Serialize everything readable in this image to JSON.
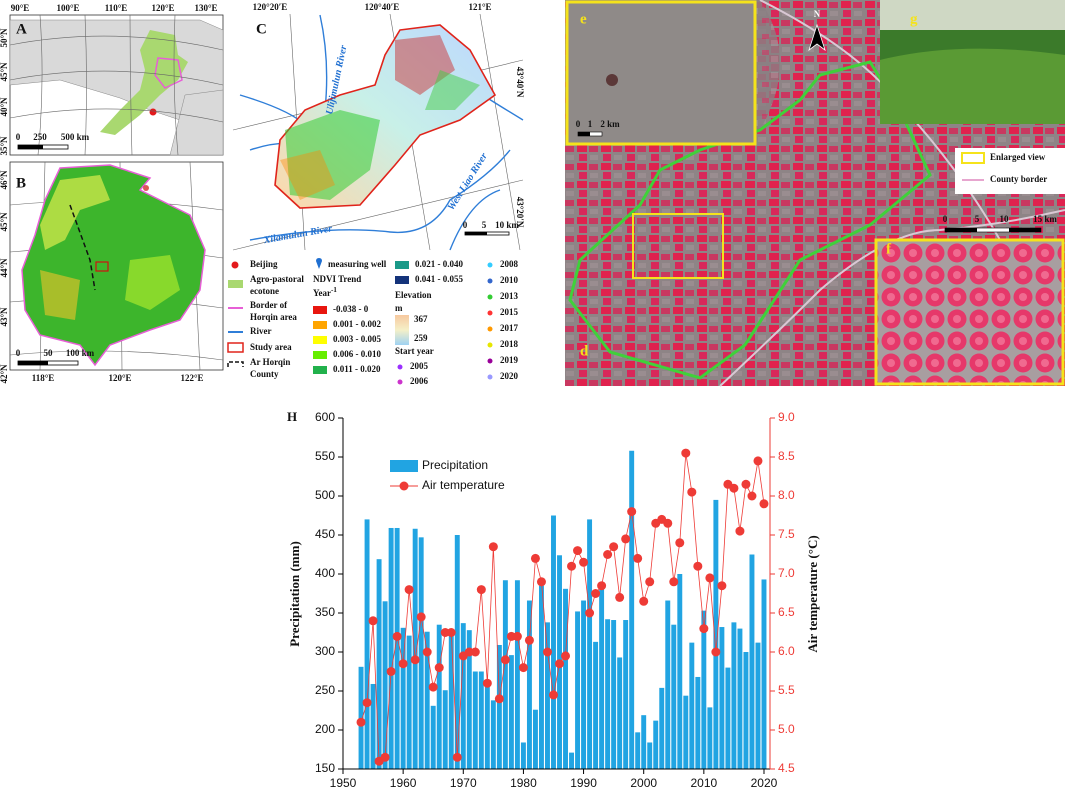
{
  "maps": {
    "A": {
      "label": "A",
      "lon": [
        "90°E",
        "100°E",
        "110°E",
        "120°E",
        "130°E"
      ],
      "lat": [
        "50°N",
        "45°N",
        "40°N",
        "35°N"
      ],
      "scale": [
        "0",
        "250",
        "500 km"
      ]
    },
    "B": {
      "label": "B",
      "lon": [
        "118°E",
        "120°E",
        "122°E"
      ],
      "lat": [
        "46°N",
        "45°N",
        "44°N",
        "43°N",
        "42°N"
      ],
      "scale": [
        "0",
        "50",
        "100 km"
      ]
    },
    "C": {
      "label": "C",
      "lon": [
        "120°20′E",
        "120°40′E",
        "121°E"
      ],
      "lat": [
        "43°40′N",
        "43°20′N"
      ],
      "rivers": [
        "Ulijimulun River",
        "Xilamulun River",
        "West Liao River"
      ],
      "scale": [
        "0",
        "5",
        "10 km"
      ]
    },
    "legend": {
      "col1": [
        [
          "Beijing"
        ],
        [
          "Agro-pastoral",
          "ecotone"
        ],
        [
          "Border of",
          "Horqin area"
        ],
        [
          "River"
        ],
        [
          "Study area"
        ],
        [
          "Ar Horqin",
          "County"
        ]
      ],
      "well": "measuring well",
      "ndvi_title": "NDVI Trend",
      "ndvi_unit": "Year",
      "ndvi_unit_exp": "-1",
      "ndvi_classes": [
        "-0.038 - 0",
        "0.001 - 0.002",
        "0.003 - 0.005",
        "0.006 - 0.010",
        "0.011 - 0.020",
        "0.021 - 0.040",
        "0.041 - 0.055"
      ],
      "elevation_title": "Elevation",
      "elevation_unit": "m",
      "elevation_range": [
        "367",
        "259"
      ],
      "start_year_title": "Start year",
      "start_years": [
        "2005",
        "2006",
        "2008",
        "2010",
        "2013",
        "2015",
        "2017",
        "2018",
        "2019",
        "2020"
      ]
    },
    "imagery": {
      "panels": [
        "e",
        "g",
        "f",
        "d"
      ],
      "north": "N",
      "scale_e": [
        "0",
        "1",
        "2 km"
      ],
      "scale_main": [
        "0",
        "5",
        "10",
        "15 km"
      ],
      "key": [
        "Enlarged view",
        "County border"
      ]
    }
  },
  "chart_data": {
    "type": "bar",
    "panel": "H",
    "y_label": "Precipitation (mm)",
    "y2_label": "Air temperature (°C)",
    "x": [
      1953,
      1954,
      1955,
      1956,
      1957,
      1958,
      1959,
      1960,
      1961,
      1962,
      1963,
      1964,
      1965,
      1966,
      1967,
      1968,
      1969,
      1970,
      1971,
      1972,
      1973,
      1974,
      1975,
      1976,
      1977,
      1978,
      1979,
      1980,
      1981,
      1982,
      1983,
      1984,
      1985,
      1986,
      1987,
      1988,
      1989,
      1990,
      1991,
      1992,
      1993,
      1994,
      1995,
      1996,
      1997,
      1998,
      1999,
      2000,
      2001,
      2002,
      2003,
      2004,
      2005,
      2006,
      2007,
      2008,
      2009,
      2010,
      2011,
      2012,
      2013,
      2014,
      2015,
      2016,
      2017,
      2018,
      2019,
      2020
    ],
    "series": [
      {
        "name": "Precipitation",
        "type": "bar",
        "color": "#21a4e2",
        "values": [
          281,
          470,
          259,
          419,
          365,
          459,
          459,
          331,
          321,
          458,
          447,
          326,
          231,
          335,
          251,
          325,
          450,
          337,
          328,
          275,
          275,
          258,
          238,
          309,
          392,
          296,
          392,
          184,
          366,
          226,
          385,
          338,
          475,
          424,
          381,
          171,
          352,
          366,
          470,
          313,
          384,
          342,
          341,
          293,
          341,
          558,
          197,
          219,
          184,
          212,
          254,
          366,
          335,
          400,
          244,
          312,
          268,
          353,
          229,
          495,
          332,
          280,
          338,
          330,
          300,
          425,
          312,
          393
        ]
      },
      {
        "name": "Air temperature",
        "type": "line",
        "axis": "y2",
        "color": "#ee3b36",
        "values": [
          5.1,
          5.35,
          6.4,
          4.6,
          4.65,
          5.75,
          6.2,
          5.85,
          6.8,
          5.9,
          6.45,
          6.0,
          5.55,
          5.8,
          6.25,
          6.25,
          4.65,
          5.95,
          6.0,
          6.0,
          6.8,
          5.6,
          7.35,
          5.4,
          5.9,
          6.2,
          6.2,
          5.8,
          6.15,
          7.2,
          6.9,
          6.0,
          5.45,
          5.85,
          5.95,
          7.1,
          7.3,
          7.15,
          6.5,
          6.75,
          6.85,
          7.25,
          7.35,
          6.7,
          7.45,
          7.8,
          7.2,
          6.65,
          6.9,
          7.65,
          7.7,
          7.65,
          6.9,
          7.4,
          8.55,
          8.05,
          7.1,
          6.3,
          6.95,
          6.0,
          6.85,
          8.15,
          8.1,
          7.55,
          8.15,
          8.0,
          8.45,
          7.9
        ]
      }
    ],
    "xlim": [
      1950,
      2021
    ],
    "xticks": [
      1950,
      1960,
      1970,
      1980,
      1990,
      2000,
      2010,
      2020
    ],
    "ylim": [
      150,
      600
    ],
    "yticks": [
      150,
      200,
      250,
      300,
      350,
      400,
      450,
      500,
      550,
      600
    ],
    "y2lim": [
      4.5,
      9.0
    ],
    "y2ticks": [
      4.5,
      {
        "value": 5.0,
        "label": "5.0"
      },
      5.5,
      {
        "value": 6.0,
        "label": "6.0"
      },
      6.5,
      {
        "value": 7.0,
        "label": "7.0"
      },
      7.5,
      {
        "value": 8.0,
        "label": "8.0"
      },
      8.5,
      {
        "value": 9.0,
        "label": "9.0"
      }
    ],
    "legend": "upper left"
  }
}
